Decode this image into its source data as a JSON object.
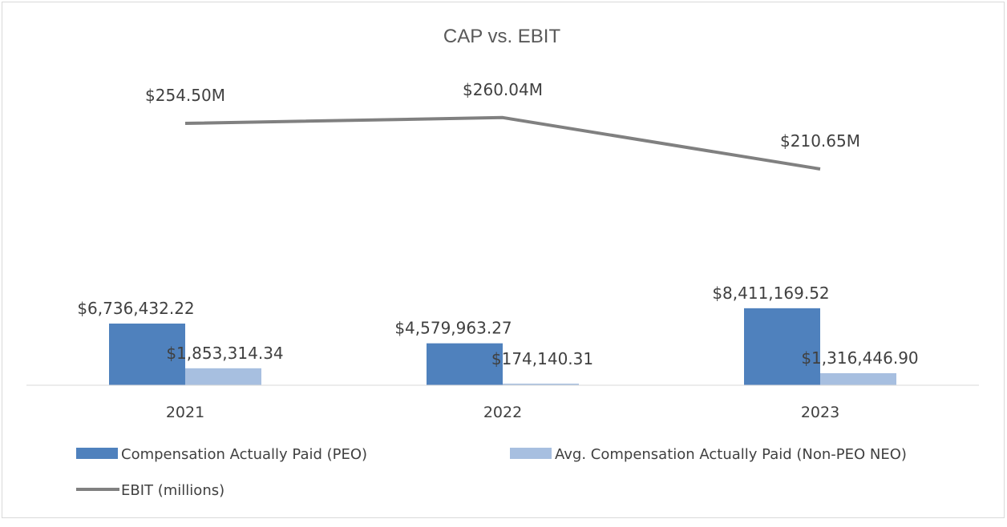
{
  "chart_data": {
    "type": "bar",
    "title": "CAP vs. EBIT",
    "categories": [
      "2021",
      "2022",
      "2023"
    ],
    "series": [
      {
        "name": "Compensation Actually Paid (PEO)",
        "type": "bar",
        "color": "#4f81bd",
        "values": [
          6736432.22,
          4579963.27,
          8411169.52
        ],
        "labels": [
          "$6,736,432.22",
          "$4,579,963.27",
          "$8,411,169.52"
        ]
      },
      {
        "name": "Avg. Compensation Actually Paid (Non-PEO NEO)",
        "type": "bar",
        "color": "#a7bfe0",
        "values": [
          1853314.34,
          174140.31,
          1316446.9
        ],
        "labels": [
          "$1,853,314.34",
          "$174,140.31",
          "$1,316,446.90"
        ]
      },
      {
        "name": "EBIT (millions)",
        "type": "line",
        "color": "#808080",
        "values": [
          254.5,
          260.04,
          210.65
        ],
        "labels": [
          "$254.50M",
          "$260.04M",
          "$210.65M"
        ]
      }
    ],
    "legend_position": "bottom",
    "grid": false
  }
}
